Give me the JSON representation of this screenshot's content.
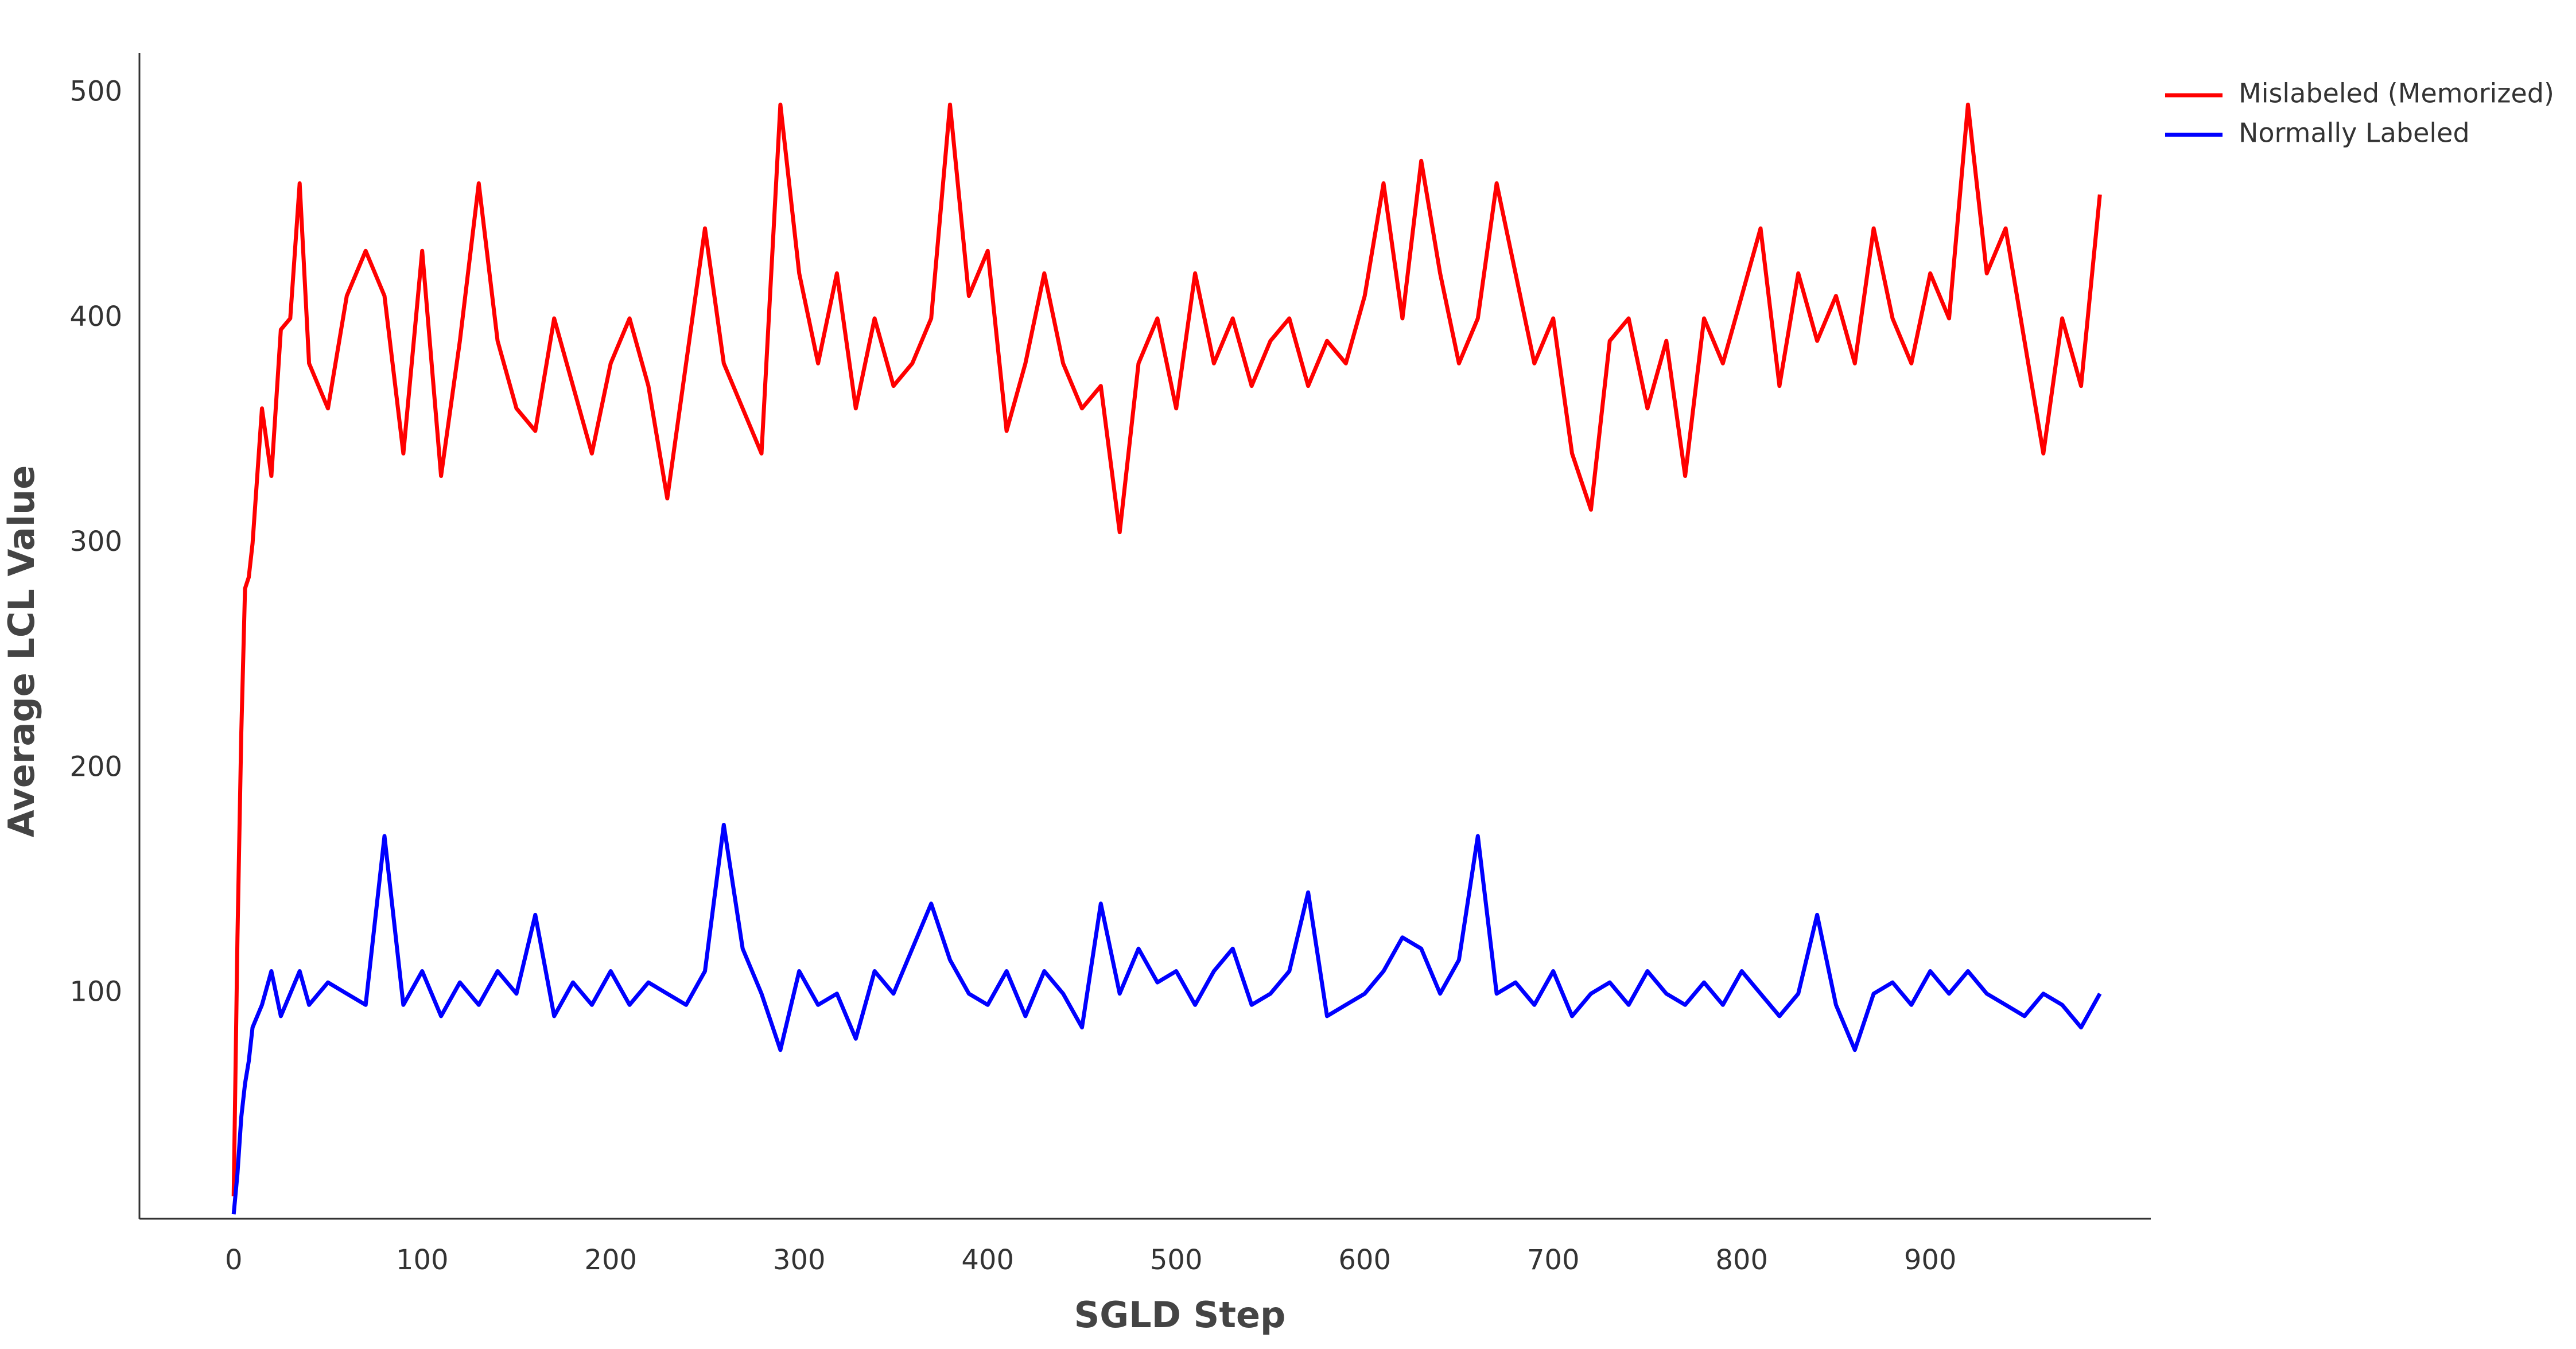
{
  "chart_data": {
    "type": "line",
    "xlabel": "SGLD Step",
    "ylabel": "Average LCL Value",
    "x": [
      0,
      2,
      4,
      6,
      8,
      10,
      15,
      20,
      25,
      30,
      35,
      40,
      50,
      60,
      70,
      80,
      90,
      100,
      110,
      120,
      130,
      140,
      150,
      160,
      170,
      180,
      190,
      200,
      210,
      220,
      230,
      240,
      250,
      260,
      270,
      280,
      290,
      300,
      310,
      320,
      330,
      340,
      350,
      360,
      370,
      380,
      390,
      400,
      410,
      420,
      430,
      440,
      450,
      460,
      470,
      480,
      490,
      500,
      510,
      520,
      530,
      540,
      550,
      560,
      570,
      580,
      590,
      600,
      610,
      620,
      630,
      640,
      650,
      660,
      670,
      680,
      690,
      700,
      710,
      720,
      730,
      740,
      750,
      760,
      770,
      780,
      790,
      800,
      810,
      820,
      830,
      840,
      850,
      860,
      870,
      880,
      890,
      900,
      910,
      920,
      930,
      940,
      950,
      960,
      970,
      980,
      990
    ],
    "series": [
      {
        "name": "Mislabeled (Memorized)",
        "color": "#ff0000",
        "values": [
          10,
          125,
          215,
          280,
          285,
          300,
          360,
          330,
          395,
          400,
          460,
          380,
          360,
          410,
          430,
          410,
          340,
          430,
          330,
          390,
          460,
          390,
          360,
          350,
          400,
          370,
          340,
          380,
          400,
          370,
          320,
          380,
          440,
          380,
          360,
          340,
          495,
          420,
          380,
          420,
          360,
          400,
          370,
          380,
          400,
          495,
          410,
          430,
          350,
          380,
          420,
          380,
          360,
          370,
          305,
          380,
          400,
          360,
          420,
          380,
          400,
          370,
          390,
          400,
          370,
          390,
          380,
          410,
          460,
          400,
          470,
          420,
          380,
          400,
          460,
          420,
          380,
          400,
          340,
          315,
          390,
          400,
          360,
          390,
          330,
          400,
          380,
          410,
          440,
          370,
          420,
          390,
          410,
          380,
          440,
          400,
          380,
          420,
          400,
          495,
          420,
          440,
          390,
          340,
          400,
          370,
          455
        ]
      },
      {
        "name": "Normally Labeled",
        "color": "#0000ff",
        "values": [
          2,
          20,
          45,
          60,
          70,
          85,
          95,
          110,
          90,
          100,
          110,
          95,
          105,
          100,
          95,
          170,
          95,
          110,
          90,
          105,
          95,
          110,
          100,
          135,
          90,
          105,
          95,
          110,
          95,
          105,
          100,
          95,
          110,
          175,
          120,
          100,
          75,
          110,
          95,
          100,
          80,
          110,
          100,
          120,
          140,
          115,
          100,
          95,
          110,
          90,
          110,
          100,
          85,
          140,
          100,
          120,
          105,
          110,
          95,
          110,
          120,
          95,
          100,
          110,
          145,
          90,
          95,
          100,
          110,
          125,
          120,
          100,
          115,
          170,
          100,
          105,
          95,
          110,
          90,
          100,
          105,
          95,
          110,
          100,
          95,
          105,
          95,
          110,
          100,
          90,
          100,
          135,
          95,
          75,
          100,
          105,
          95,
          110,
          100,
          110,
          100,
          95,
          90,
          100,
          95,
          85,
          100
        ]
      }
    ],
    "xlim": [
      -50,
      1017
    ],
    "ylim": [
      0,
      518
    ],
    "xticks": [
      0,
      100,
      200,
      300,
      400,
      500,
      600,
      700,
      800,
      900
    ],
    "yticks": [
      100,
      200,
      300,
      400,
      500
    ],
    "legend": "upper right outside"
  }
}
